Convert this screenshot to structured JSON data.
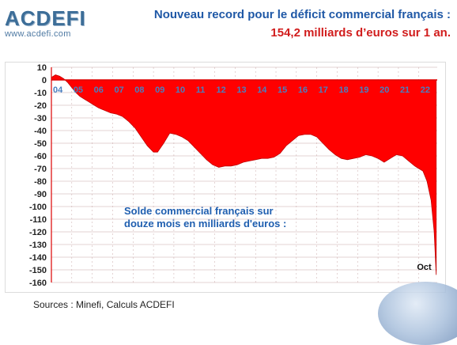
{
  "header": {
    "logo": "ACDEFI",
    "logo_url": "www.acdefi.com",
    "title_line1": "Nouveau record pour le déficit commercial français :",
    "title_line2": "154,2 milliards d’euros sur 1 an."
  },
  "footer": {
    "sources": "Sources : Minefi, Calculs ACDEFI"
  },
  "colors": {
    "area": "#ff0000",
    "grid": "#c8a8a8",
    "axis": "#dd0000",
    "title_blue": "#1f58a6",
    "title_red": "#d11d1d",
    "annotation": "#1f5fb0"
  },
  "chart_data": {
    "type": "area",
    "title": "",
    "annotation_lines": [
      "Solde commercial français sur",
      "douze mois en milliards d'euros :"
    ],
    "end_label": "Oct",
    "xlabel": "",
    "ylabel": "",
    "ylim": [
      -160,
      10
    ],
    "yticks": [
      10,
      0,
      -10,
      -20,
      -30,
      -40,
      -50,
      -60,
      -70,
      -80,
      -90,
      -100,
      -110,
      -120,
      -130,
      -140,
      -150,
      -160
    ],
    "xlim": [
      2004.0,
      2022.9
    ],
    "x_tick_labels": [
      "04",
      "05",
      "06",
      "07",
      "08",
      "09",
      "10",
      "11",
      "12",
      "13",
      "14",
      "15",
      "16",
      "17",
      "18",
      "19",
      "20",
      "21",
      "22"
    ],
    "x_tick_positions": [
      2004,
      2005,
      2006,
      2007,
      2008,
      2009,
      2010,
      2011,
      2012,
      2013,
      2014,
      2015,
      2016,
      2017,
      2018,
      2019,
      2020,
      2021,
      2022
    ],
    "grid": true,
    "series": [
      {
        "name": "",
        "x": [
          2004.0,
          2004.2,
          2004.4,
          2004.6,
          2004.8,
          2005.0,
          2005.2,
          2005.4,
          2005.6,
          2005.8,
          2006.0,
          2006.3,
          2006.6,
          2006.9,
          2007.2,
          2007.5,
          2007.8,
          2008.1,
          2008.4,
          2008.7,
          2009.0,
          2009.2,
          2009.5,
          2009.8,
          2010.1,
          2010.4,
          2010.7,
          2011.0,
          2011.3,
          2011.6,
          2011.9,
          2012.2,
          2012.5,
          2012.8,
          2013.1,
          2013.4,
          2013.7,
          2014.0,
          2014.3,
          2014.6,
          2014.9,
          2015.2,
          2015.5,
          2015.8,
          2016.1,
          2016.4,
          2016.7,
          2017.0,
          2017.3,
          2017.6,
          2017.9,
          2018.2,
          2018.5,
          2018.8,
          2019.1,
          2019.4,
          2019.7,
          2020.0,
          2020.3,
          2020.6,
          2020.9,
          2021.2,
          2021.5,
          2021.8,
          2022.0,
          2022.2,
          2022.4,
          2022.6,
          2022.75,
          2022.85
        ],
        "values": [
          2,
          4,
          3,
          1,
          -2,
          -6,
          -10,
          -13,
          -15,
          -17,
          -19,
          -22,
          -24,
          -26,
          -27,
          -29,
          -33,
          -38,
          -45,
          -52,
          -57,
          -57,
          -50,
          -42,
          -43,
          -45,
          -48,
          -53,
          -58,
          -63,
          -67,
          -69,
          -68,
          -68,
          -67,
          -65,
          -64,
          -63,
          -62,
          -62,
          -61,
          -58,
          -52,
          -48,
          -44,
          -43,
          -43,
          -45,
          -50,
          -55,
          -59,
          -62,
          -63,
          -62,
          -61,
          -59,
          -60,
          -62,
          -65,
          -62,
          -59,
          -60,
          -64,
          -68,
          -70,
          -72,
          -80,
          -95,
          -120,
          -154
        ]
      }
    ]
  }
}
